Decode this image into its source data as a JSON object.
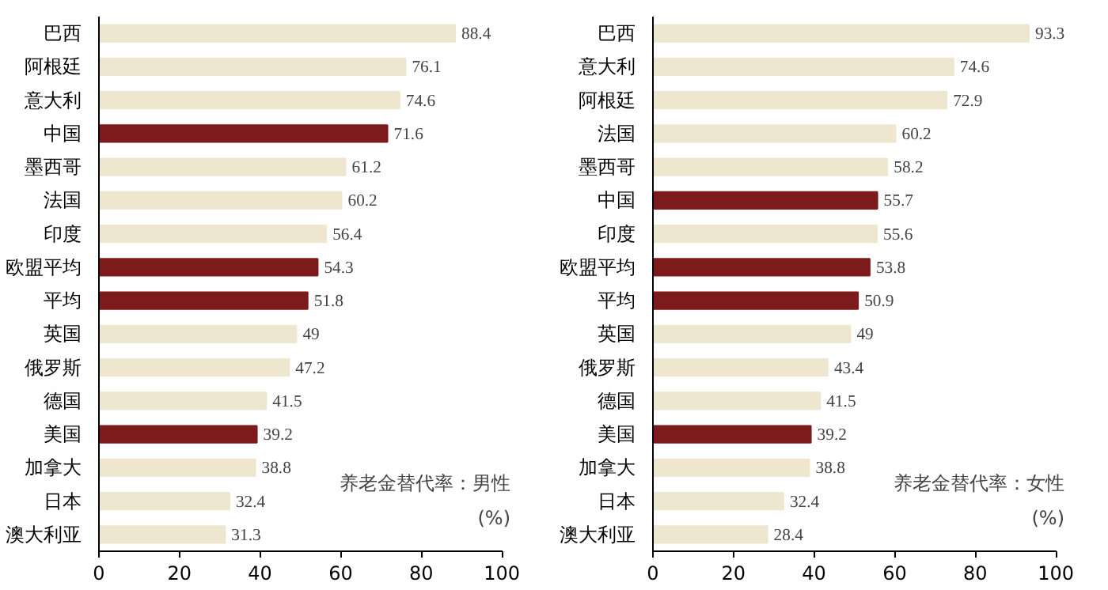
{
  "chart_data": [
    {
      "type": "bar",
      "orientation": "horizontal",
      "categories": [
        "巴西",
        "阿根廷",
        "意大利",
        "中国",
        "墨西哥",
        "法国",
        "印度",
        "欧盟平均",
        "平均",
        "英国",
        "俄罗斯",
        "德国",
        "美国",
        "加拿大",
        "日本",
        "澳大利亚"
      ],
      "values": [
        88.4,
        76.1,
        74.6,
        71.6,
        61.2,
        60.2,
        56.4,
        54.3,
        51.8,
        49,
        47.2,
        41.5,
        39.2,
        38.8,
        32.4,
        31.3
      ],
      "colors": [
        "#efe6cf",
        "#efe6cf",
        "#efe6cf",
        "#7d1a1c",
        "#efe6cf",
        "#efe6cf",
        "#efe6cf",
        "#7d1a1c",
        "#7d1a1c",
        "#efe6cf",
        "#efe6cf",
        "#efe6cf",
        "#7d1a1c",
        "#efe6cf",
        "#efe6cf",
        "#efe6cf"
      ],
      "xlim": [
        0,
        100
      ],
      "xticks": [
        0,
        20,
        40,
        60,
        80,
        100
      ],
      "data_labels": true,
      "grid": false,
      "annotations": [
        "养老金替代率：男性",
        "(%)"
      ]
    },
    {
      "type": "bar",
      "orientation": "horizontal",
      "categories": [
        "巴西",
        "意大利",
        "阿根廷",
        "法国",
        "墨西哥",
        "中国",
        "印度",
        "欧盟平均",
        "平均",
        "英国",
        "俄罗斯",
        "德国",
        "美国",
        "加拿大",
        "日本",
        "澳大利亚"
      ],
      "values": [
        93.3,
        74.6,
        72.9,
        60.2,
        58.2,
        55.7,
        55.6,
        53.8,
        50.9,
        49,
        43.4,
        41.5,
        39.2,
        38.8,
        32.4,
        28.4
      ],
      "colors": [
        "#efe6cf",
        "#efe6cf",
        "#efe6cf",
        "#efe6cf",
        "#efe6cf",
        "#7d1a1c",
        "#efe6cf",
        "#7d1a1c",
        "#7d1a1c",
        "#efe6cf",
        "#efe6cf",
        "#efe6cf",
        "#7d1a1c",
        "#efe6cf",
        "#efe6cf",
        "#efe6cf"
      ],
      "xlim": [
        0,
        100
      ],
      "xticks": [
        0,
        20,
        40,
        60,
        80,
        100
      ],
      "data_labels": true,
      "grid": false,
      "annotations": [
        "养老金替代率：女性",
        "(%)"
      ]
    }
  ]
}
